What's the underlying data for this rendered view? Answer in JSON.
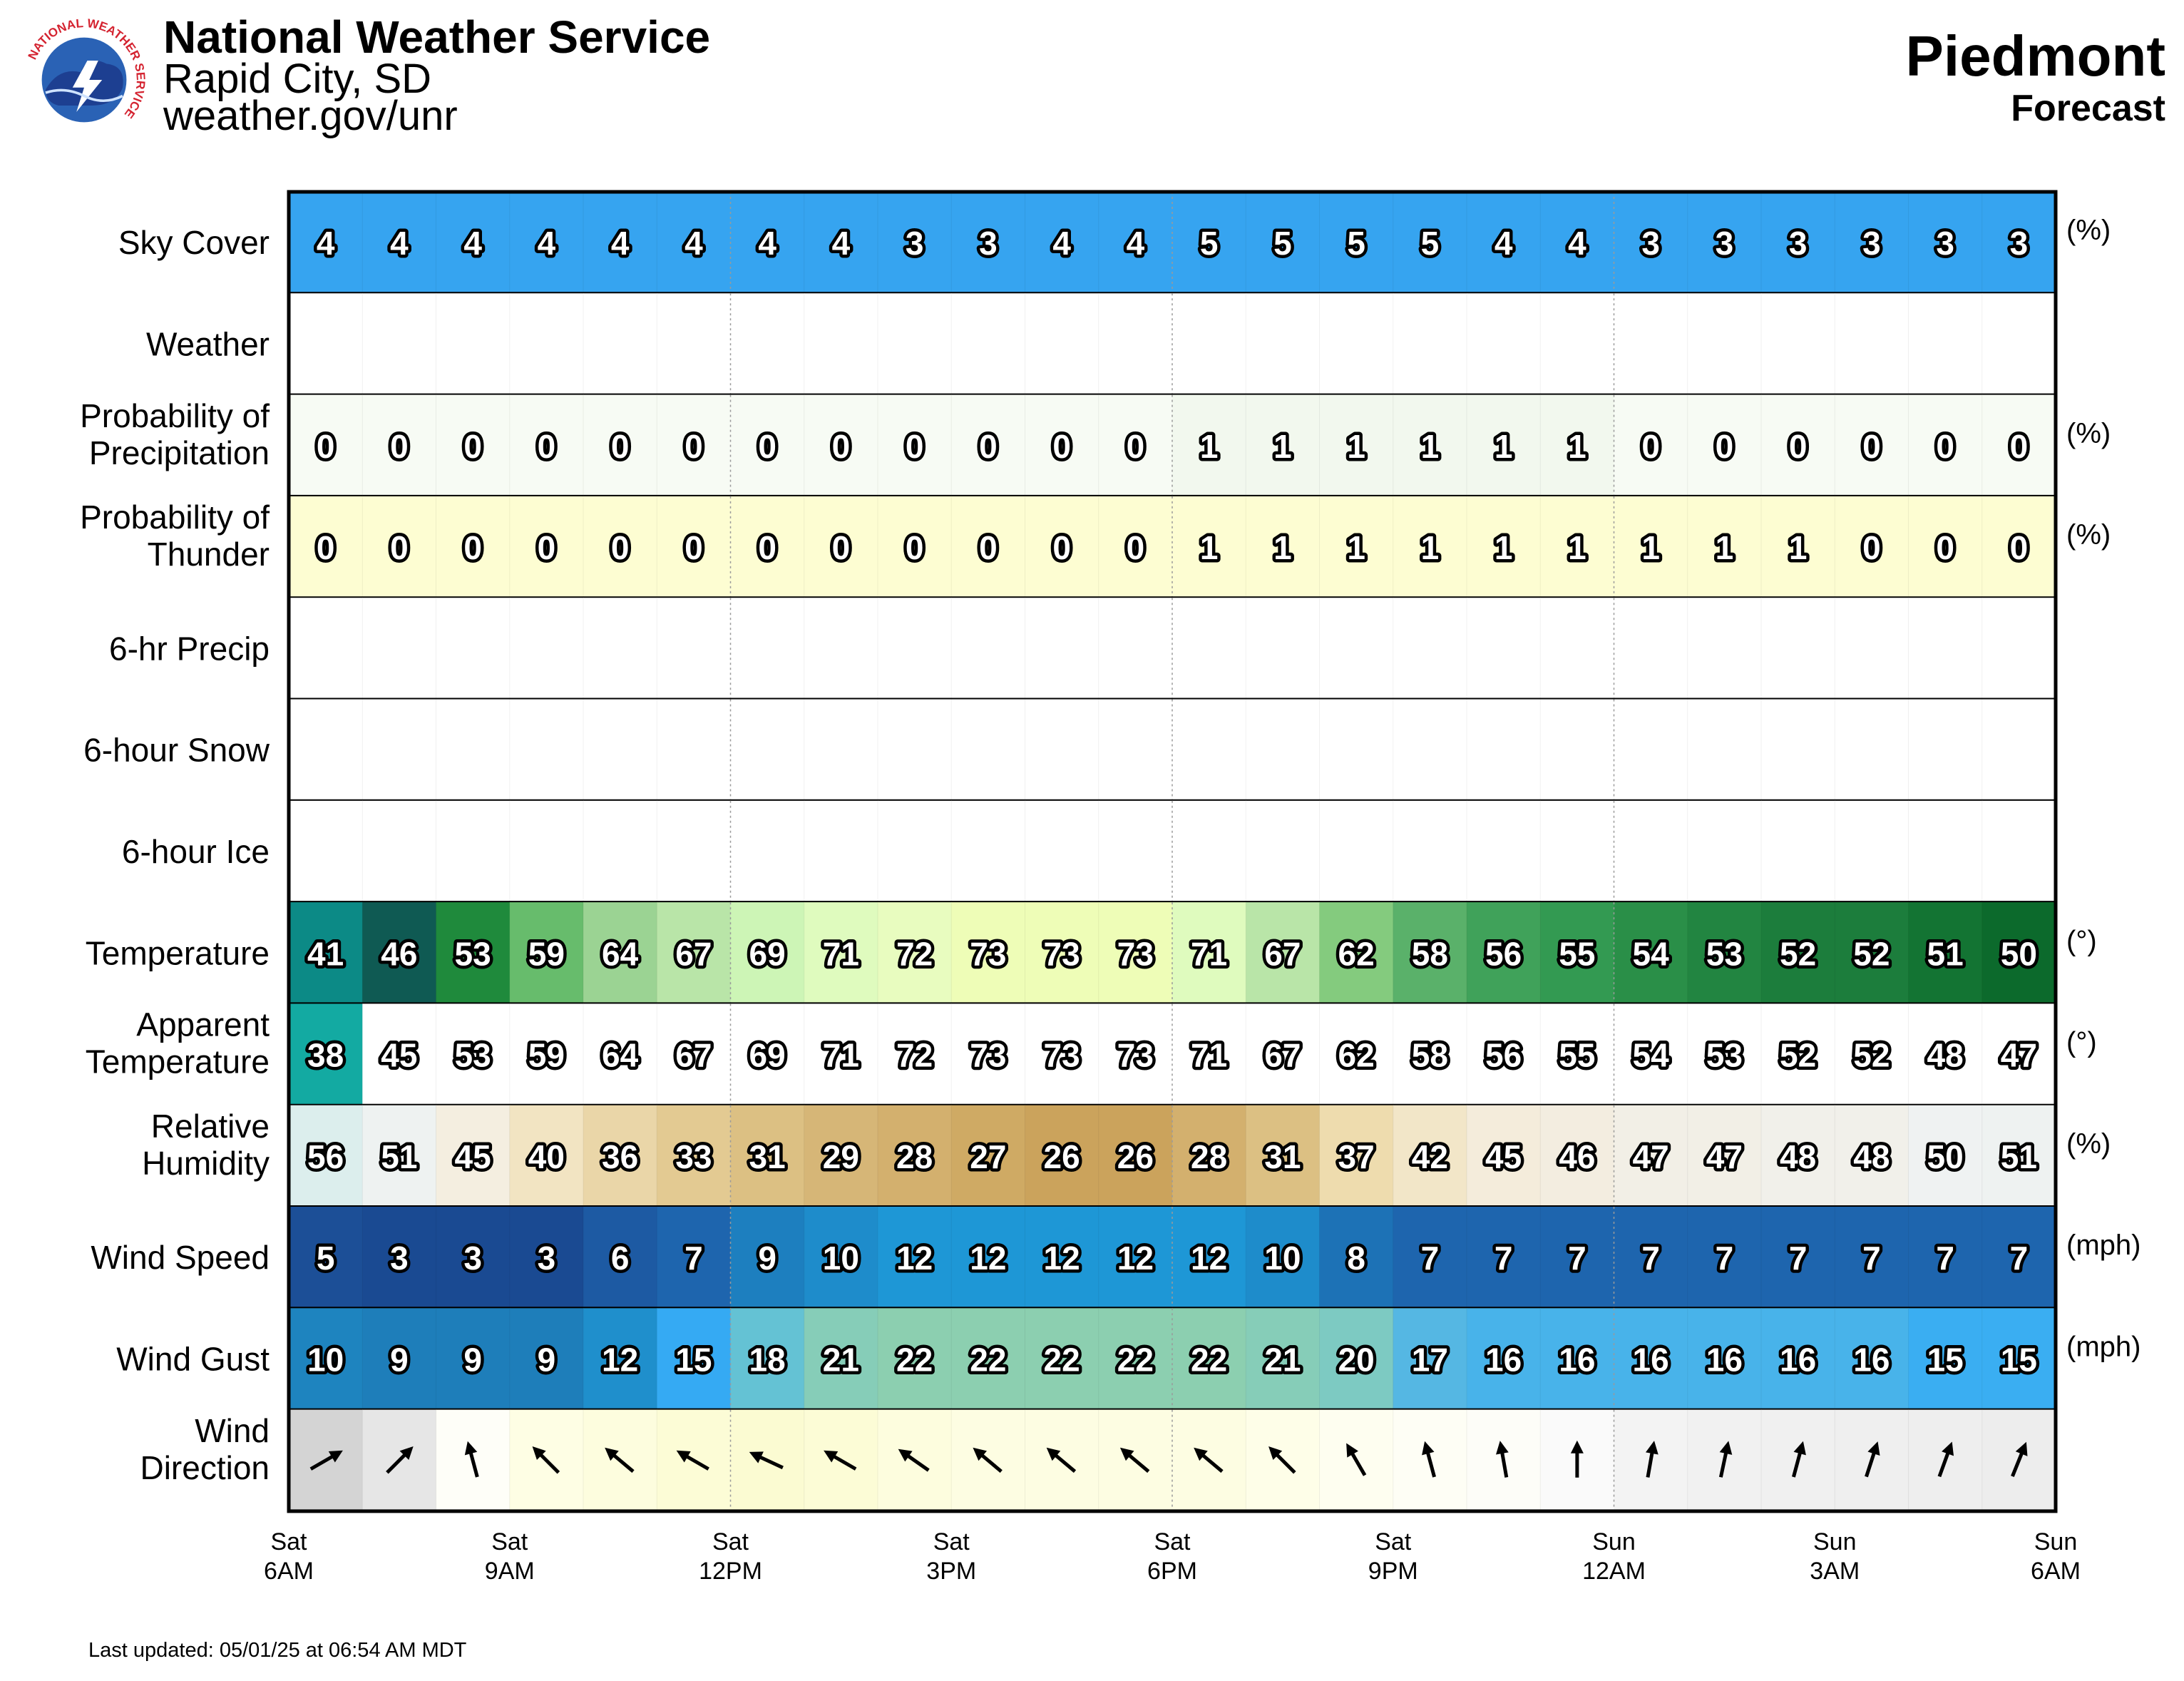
{
  "header": {
    "title": "National Weather Service",
    "office": "Rapid City, SD",
    "url": "weather.gov/unr",
    "logo_text": "NATIONAL WEATHER SERVICE",
    "location": "Piedmont",
    "subtitle": "Forecast"
  },
  "footer": {
    "updated": "Last updated: 05/01/25 at 06:54 AM MDT"
  },
  "chart_data": {
    "type": "table",
    "time_labels": [
      {
        "day": "Sat",
        "time": "6AM"
      },
      {
        "day": "Sat",
        "time": "9AM"
      },
      {
        "day": "Sat",
        "time": "12PM"
      },
      {
        "day": "Sat",
        "time": "3PM"
      },
      {
        "day": "Sat",
        "time": "6PM"
      },
      {
        "day": "Sat",
        "time": "9PM"
      },
      {
        "day": "Sun",
        "time": "12AM"
      },
      {
        "day": "Sun",
        "time": "3AM"
      },
      {
        "day": "Sun",
        "time": "6AM"
      }
    ],
    "rows": [
      {
        "label": "Sky Cover",
        "unit": "(%)",
        "values": [
          4,
          4,
          4,
          4,
          4,
          4,
          4,
          4,
          3,
          3,
          4,
          4,
          5,
          5,
          5,
          5,
          4,
          4,
          3,
          3,
          3,
          3,
          3,
          3
        ],
        "colors": [
          "#36a4f0"
        ]
      },
      {
        "label": "Weather",
        "unit": "",
        "values": [],
        "colors": [
          "#ffffff"
        ]
      },
      {
        "label": "Probability of Precipitation",
        "unit": "(%)",
        "values": [
          0,
          0,
          0,
          0,
          0,
          0,
          0,
          0,
          0,
          0,
          0,
          0,
          1,
          1,
          1,
          1,
          1,
          1,
          0,
          0,
          0,
          0,
          0,
          0
        ],
        "colors": [
          "#f7fbf4",
          "#f7fbf4",
          "#f7fbf4",
          "#f7fbf4",
          "#f7fbf4",
          "#f7fbf4",
          "#f7fbf4",
          "#f7fbf4",
          "#f7fbf4",
          "#f7fbf4",
          "#f7fbf4",
          "#f7fbf4",
          "#f2f8ee",
          "#f2f8ee",
          "#f2f8ee",
          "#f2f8ee",
          "#f2f8ee",
          "#f2f8ee",
          "#f7fbf4",
          "#f7fbf4",
          "#f7fbf4",
          "#f7fbf4",
          "#f7fbf4",
          "#f7fbf4"
        ]
      },
      {
        "label": "Probability of Thunder",
        "unit": "(%)",
        "values": [
          0,
          0,
          0,
          0,
          0,
          0,
          0,
          0,
          0,
          0,
          0,
          0,
          1,
          1,
          1,
          1,
          1,
          1,
          1,
          1,
          1,
          0,
          0,
          0
        ],
        "colors": [
          "#fdfdd2"
        ]
      },
      {
        "label": "6-hr Precip",
        "unit": "",
        "values": [],
        "colors": [
          "#ffffff"
        ]
      },
      {
        "label": "6-hour Snow",
        "unit": "",
        "values": [],
        "colors": [
          "#ffffff"
        ]
      },
      {
        "label": "6-hour Ice",
        "unit": "",
        "values": [],
        "colors": [
          "#ffffff"
        ]
      },
      {
        "label": "Temperature",
        "unit": "(°)",
        "values": [
          41,
          46,
          53,
          59,
          64,
          67,
          69,
          71,
          72,
          73,
          73,
          73,
          71,
          67,
          62,
          58,
          56,
          55,
          54,
          53,
          52,
          52,
          51,
          50
        ],
        "colors": [
          "#0c8a86",
          "#0f5a53",
          "#1f8a3c",
          "#67bc6c",
          "#9bd393",
          "#b9e5a8",
          "#cdf5b6",
          "#dffbbe",
          "#e8fcbf",
          "#eefdb7",
          "#eefdb7",
          "#eefdb7",
          "#dffbbe",
          "#b9e5a8",
          "#84cb7e",
          "#5ab16a",
          "#40a25a",
          "#339a52",
          "#2a8f48",
          "#228541",
          "#1c7d3c",
          "#1c7d3c",
          "#137433",
          "#0c6a2c"
        ]
      },
      {
        "label": "Apparent Temperature",
        "unit": "(°)",
        "values": [
          38,
          45,
          53,
          59,
          64,
          67,
          69,
          71,
          72,
          73,
          73,
          73,
          71,
          67,
          62,
          58,
          56,
          55,
          54,
          53,
          52,
          52,
          48,
          47
        ],
        "colors": [
          "#13aaa2",
          "#ffffff",
          "#ffffff",
          "#ffffff",
          "#ffffff",
          "#ffffff",
          "#ffffff",
          "#ffffff",
          "#ffffff",
          "#ffffff",
          "#ffffff",
          "#ffffff",
          "#ffffff",
          "#ffffff",
          "#ffffff",
          "#ffffff",
          "#ffffff",
          "#ffffff",
          "#ffffff",
          "#ffffff",
          "#ffffff",
          "#ffffff",
          "#ffffff",
          "#ffffff"
        ]
      },
      {
        "label": "Relative Humidity",
        "unit": "(%)",
        "values": [
          56,
          51,
          45,
          40,
          36,
          33,
          31,
          29,
          28,
          27,
          26,
          26,
          28,
          31,
          37,
          42,
          45,
          46,
          47,
          47,
          48,
          48,
          50,
          51
        ],
        "colors": [
          "#dceeed",
          "#eef2f1",
          "#f4eee0",
          "#f2e4c2",
          "#ead6a8",
          "#e3ca92",
          "#dcc083",
          "#d6b677",
          "#d3b06e",
          "#cfaa64",
          "#cba35c",
          "#cba35c",
          "#d3b06e",
          "#dcc083",
          "#eedcae",
          "#f2e6c8",
          "#f4ecdb",
          "#f3ede0",
          "#f2efe6",
          "#f2efe6",
          "#f1f0ea",
          "#f1f0ea",
          "#eff2f2",
          "#eef2f1"
        ]
      },
      {
        "label": "Wind Speed",
        "unit": "(mph)",
        "values": [
          5,
          3,
          3,
          3,
          6,
          7,
          9,
          10,
          12,
          12,
          12,
          12,
          12,
          10,
          8,
          7,
          7,
          7,
          7,
          7,
          7,
          7,
          7,
          7
        ],
        "colors": [
          "#1c4f97",
          "#1a4a92",
          "#1a4a92",
          "#1a4a92",
          "#1d5aa3",
          "#1e65ae",
          "#1d7fbf",
          "#1e8ccb",
          "#1e97d6",
          "#1e97d6",
          "#1e97d6",
          "#1e97d6",
          "#1e97d6",
          "#1e8ccb",
          "#1d72b6",
          "#1e65ae",
          "#1e65ae",
          "#1e65ae",
          "#1e65ae",
          "#1e65ae",
          "#1e65ae",
          "#1e65ae",
          "#1e65ae",
          "#1e65ae"
        ]
      },
      {
        "label": "Wind Gust",
        "unit": "(mph)",
        "values": [
          10,
          9,
          9,
          9,
          12,
          15,
          18,
          21,
          22,
          22,
          22,
          22,
          22,
          21,
          20,
          17,
          16,
          16,
          16,
          16,
          16,
          16,
          15,
          15
        ],
        "colors": [
          "#1e84bf",
          "#1e7eba",
          "#1e7eba",
          "#1e7eba",
          "#1f8fcc",
          "#35aaf3",
          "#64c2d4",
          "#86cdb8",
          "#8ccfb0",
          "#8ccfb0",
          "#8ccfb0",
          "#8ccfb0",
          "#8ccfb0",
          "#86cdb8",
          "#7dcac2",
          "#55b7e3",
          "#48b3ea",
          "#48b3ea",
          "#48b3ea",
          "#48b3ea",
          "#48b3ea",
          "#48b3ea",
          "#3aaef2",
          "#3aaef2"
        ]
      },
      {
        "label": "Wind Direction",
        "unit": "",
        "values": [],
        "direction_deg": [
          60,
          45,
          345,
          315,
          310,
          300,
          295,
          300,
          305,
          310,
          310,
          310,
          310,
          315,
          330,
          345,
          350,
          0,
          10,
          12,
          15,
          18,
          20,
          22
        ],
        "colors": [
          "#d4d4d4",
          "#e6e6e6",
          "#fefef8",
          "#fefee4",
          "#fdfdde",
          "#fcfcd6",
          "#fbfbd2",
          "#fcfcd6",
          "#fdfdde",
          "#fdfde2",
          "#fdfde2",
          "#fdfde2",
          "#fdfde2",
          "#fefee8",
          "#fefef0",
          "#fefef5",
          "#fdfdf8",
          "#fafafa",
          "#f3f3f3",
          "#f1f1f1",
          "#f0f0f0",
          "#efefef",
          "#eeeeee",
          "#ededed"
        ]
      }
    ]
  }
}
